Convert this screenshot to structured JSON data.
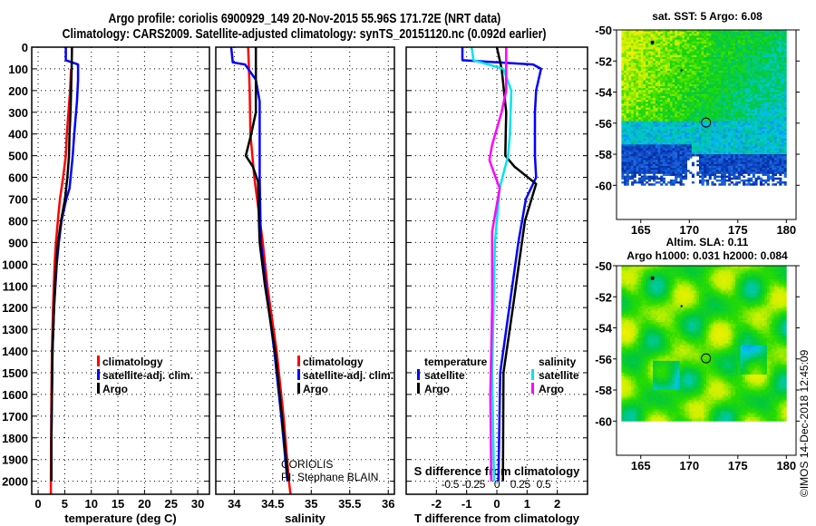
{
  "header": {
    "line1": "Argo profile: coriolis 6900929_149 20-Nov-2015 55.96S 171.72E (NRT data)",
    "line2": "Climatology: CARS2009. Satellite-adjusted climatology: synTS_20151120.nc (0.092d earlier)"
  },
  "credits": {
    "center": "CORIOLIS",
    "pi": "PI: Stephane BLAIN",
    "imos": "©IMOS 14-Dec-2018 12:45:09"
  },
  "colors": {
    "climatology": "#ff0000",
    "satellite": "#0000ff",
    "argo": "#000000",
    "s_satellite": "#00e5ee",
    "s_argo": "#ff00ff"
  },
  "chart_data": [
    {
      "type": "line",
      "title": "",
      "xlabel": "temperature (deg C)",
      "ylabel": "",
      "xlim": [
        -1.2,
        32.2
      ],
      "ylim": [
        2060,
        0
      ],
      "xticks": [
        0,
        5,
        10,
        15,
        20,
        25,
        30
      ],
      "yticks": [
        0,
        100,
        200,
        300,
        400,
        500,
        600,
        700,
        800,
        900,
        1000,
        1100,
        1200,
        1300,
        1400,
        1500,
        1600,
        1700,
        1800,
        1900,
        2000
      ],
      "grid": true,
      "legend": {
        "placement": "center-right",
        "entries": [
          "climatology",
          "satellite-adj. clim.",
          "Argo"
        ]
      },
      "series": [
        {
          "name": "climatology",
          "color_key": "climatology",
          "depth": [
            100,
            200,
            300,
            400,
            500,
            600,
            700,
            800,
            900,
            1000,
            1200,
            1400,
            1600,
            1800,
            2000,
            2060
          ],
          "values": [
            6.2,
            6.0,
            5.7,
            5.4,
            5.2,
            4.7,
            4.1,
            3.7,
            3.35,
            3.1,
            2.8,
            2.6,
            2.5,
            2.45,
            2.4,
            2.4
          ]
        },
        {
          "name": "satellite-adj. clim.",
          "color_key": "satellite",
          "depth": [
            0,
            60,
            80,
            150,
            250,
            400,
            500,
            650,
            700,
            800,
            900,
            1000,
            1200,
            1400,
            1600,
            1800,
            2000
          ],
          "values": [
            5.2,
            5.2,
            7.5,
            7.5,
            7.3,
            6.8,
            6.5,
            5.9,
            5.3,
            4.4,
            3.9,
            3.5,
            3.0,
            2.7,
            2.6,
            2.5,
            2.5
          ]
        },
        {
          "name": "Argo",
          "color_key": "argo",
          "depth": [
            0,
            100,
            200,
            300,
            400,
            500,
            600,
            700,
            800,
            900,
            1000,
            1200,
            1400,
            1600,
            1800,
            2000
          ],
          "values": [
            6.36,
            6.3,
            6.2,
            6.1,
            5.9,
            5.8,
            5.5,
            5.06,
            4.3,
            3.75,
            3.4,
            3.0,
            2.7,
            2.6,
            2.5,
            2.5
          ]
        }
      ]
    },
    {
      "type": "line",
      "xlabel": "salinity",
      "xlim": [
        33.76,
        36.08
      ],
      "ylim": [
        2060,
        0
      ],
      "xticks": [
        34,
        34.5,
        35,
        35.5,
        36
      ],
      "xticklabels": [
        "34",
        "34.5",
        "35",
        "35.5",
        "36"
      ],
      "grid": true,
      "legend": {
        "placement": "center-right",
        "entries": [
          "climatology",
          "satellite-adj. clim.",
          "Argo"
        ]
      },
      "series": [
        {
          "name": "climatology",
          "color_key": "climatology",
          "depth": [
            0,
            200,
            400,
            600,
            900,
            1100,
            1400,
            1700,
            2000,
            2060
          ],
          "values": [
            34.18,
            34.2,
            34.21,
            34.26,
            34.37,
            34.43,
            34.55,
            34.64,
            34.71,
            34.73
          ]
        },
        {
          "name": "satellite-adj. clim.",
          "color_key": "satellite",
          "depth": [
            0,
            70,
            80,
            150,
            250,
            600,
            900,
            1100,
            1400,
            1700,
            2000
          ],
          "values": [
            33.96,
            33.98,
            34.14,
            34.28,
            34.33,
            34.33,
            34.345,
            34.41,
            34.52,
            34.61,
            34.69
          ]
        },
        {
          "name": "Argo",
          "color_key": "argo",
          "depth": [
            0,
            300,
            400,
            500,
            550,
            620,
            800,
            900,
            1100,
            1400,
            1700,
            2000
          ],
          "values": [
            34.28,
            34.28,
            34.22,
            34.15,
            34.24,
            34.31,
            34.32,
            34.33,
            34.4,
            34.53,
            34.62,
            34.7
          ]
        }
      ]
    },
    {
      "type": "line",
      "xlabel": "T difference from climatology",
      "x2label": "S difference from climatology",
      "xlim": [
        -3.0,
        3.0
      ],
      "x2lim": [
        -0.97,
        0.97
      ],
      "ylim": [
        2060,
        0
      ],
      "xticks": [
        -2,
        -1,
        0,
        1,
        2
      ],
      "x2ticks": [
        -0.5,
        -0.25,
        0,
        0.25,
        0.5
      ],
      "x2ticklabels": [
        "-0.5",
        "-0.25",
        "0",
        "0.25",
        "0.5"
      ],
      "grid": true,
      "legend": {
        "temperature_header": "temperature",
        "salinity_header": "salinity",
        "entries": [
          "satellite",
          "Argo",
          "satellite",
          "Argo"
        ]
      },
      "series": [
        {
          "name": "satellite",
          "group": "temperature",
          "axis": "x",
          "color_key": "satellite",
          "depth": [
            0,
            60,
            80,
            100,
            200,
            300,
            500,
            600,
            700,
            900,
            1200,
            1500,
            2000
          ],
          "values": [
            -1.14,
            -1.14,
            1.2,
            1.46,
            1.3,
            1.26,
            1.26,
            1.3,
            0.96,
            0.71,
            0.41,
            0.11,
            0.05
          ]
        },
        {
          "name": "Argo",
          "group": "temperature",
          "axis": "x",
          "color_key": "argo",
          "depth": [
            0,
            100,
            300,
            500,
            550,
            630,
            800,
            1000,
            1200,
            1500,
            2000
          ],
          "values": [
            0,
            0.16,
            0.31,
            0.28,
            0.58,
            1.3,
            0.93,
            0.73,
            0.53,
            0.22,
            0.2
          ]
        },
        {
          "name": "satellite",
          "group": "salinity",
          "axis": "x2",
          "color_key": "s_satellite",
          "depth": [
            0,
            60,
            100,
            200,
            400,
            500,
            650,
            900,
            1500,
            2000
          ],
          "values": [
            -0.27,
            -0.25,
            0.07,
            0.155,
            0.14,
            0.12,
            0.03,
            -0.02,
            -0.05,
            -0.03
          ]
        },
        {
          "name": "Argo",
          "group": "salinity",
          "axis": "x2",
          "color_key": "s_argo",
          "depth": [
            0,
            200,
            300,
            450,
            520,
            580,
            650,
            850,
            1200,
            1600,
            2000
          ],
          "values": [
            0.1,
            0.1,
            0.05,
            -0.05,
            -0.08,
            -0.03,
            0.03,
            -0.05,
            -0.05,
            -0.07,
            -0.06
          ]
        }
      ]
    },
    {
      "type": "heatmap",
      "title": "sat. SST: 5 Argo: 6.08",
      "xlim": [
        162.5,
        181
      ],
      "ylim": [
        -62.2,
        -50
      ],
      "xticks": [
        165,
        170,
        175,
        180
      ],
      "yticks": [
        -50,
        -52,
        -54,
        -56,
        -58,
        -60
      ],
      "argo_position": [
        171.72,
        -55.96
      ]
    },
    {
      "type": "heatmap",
      "title": "Altim. SLA: 0.11",
      "subtitle": "Argo h1000: 0.031 h2000: 0.084",
      "xlim": [
        162.5,
        181
      ],
      "ylim": [
        -62.2,
        -50
      ],
      "xticks": [
        165,
        170,
        175,
        180
      ],
      "yticks": [
        -50,
        -52,
        -54,
        -56,
        -58,
        -60
      ],
      "argo_position": [
        171.72,
        -55.96
      ]
    }
  ]
}
